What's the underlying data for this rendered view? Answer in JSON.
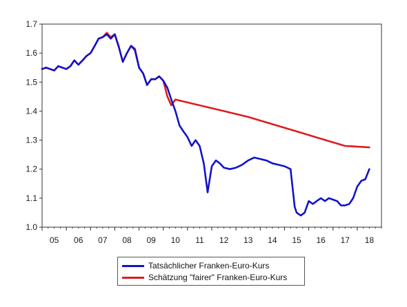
{
  "chart_data": {
    "type": "line",
    "title": "",
    "xlabel": "",
    "ylabel": "",
    "xlim": [
      2004.5,
      2018.5
    ],
    "ylim": [
      1.0,
      1.7
    ],
    "y_ticks": [
      1.0,
      1.1,
      1.2,
      1.3,
      1.4,
      1.5,
      1.6,
      1.7
    ],
    "y_tick_labels": [
      "1.0",
      "1.1",
      "1.2",
      "1.3",
      "1.4",
      "1.5",
      "1.6",
      "1.7"
    ],
    "x_tick_labels": [
      "05",
      "06",
      "07",
      "08",
      "09",
      "10",
      "11",
      "12",
      "13",
      "14",
      "15",
      "16",
      "17",
      "18"
    ],
    "x_tick_positions": [
      2005,
      2006,
      2007,
      2008,
      2009,
      2010,
      2011,
      2012,
      2013,
      2014,
      2015,
      2016,
      2017,
      2018
    ],
    "grid": true,
    "legend_position": "bottom-center",
    "series": [
      {
        "name": "Tatsächlicher Franken-Euro-Kurs",
        "color": "#1212c8",
        "x": [
          2004.5,
          2004.67,
          2004.83,
          2005.0,
          2005.17,
          2005.33,
          2005.5,
          2005.67,
          2005.83,
          2006.0,
          2006.17,
          2006.33,
          2006.5,
          2006.67,
          2006.83,
          2007.0,
          2007.17,
          2007.33,
          2007.5,
          2007.67,
          2007.83,
          2008.0,
          2008.17,
          2008.33,
          2008.5,
          2008.67,
          2008.83,
          2009.0,
          2009.17,
          2009.33,
          2009.5,
          2009.67,
          2009.83,
          2010.0,
          2010.17,
          2010.33,
          2010.5,
          2010.67,
          2010.83,
          2011.0,
          2011.17,
          2011.33,
          2011.5,
          2011.67,
          2011.83,
          2012.0,
          2012.25,
          2012.5,
          2012.75,
          2013.0,
          2013.25,
          2013.5,
          2013.75,
          2014.0,
          2014.25,
          2014.5,
          2014.75,
          2014.92,
          2015.0,
          2015.17,
          2015.33,
          2015.5,
          2015.67,
          2015.83,
          2016.0,
          2016.17,
          2016.33,
          2016.5,
          2016.67,
          2016.83,
          2017.0,
          2017.17,
          2017.33,
          2017.5,
          2017.67,
          2017.83,
          2018.0
        ],
        "y": [
          1.545,
          1.55,
          1.545,
          1.54,
          1.555,
          1.55,
          1.545,
          1.555,
          1.575,
          1.56,
          1.575,
          1.59,
          1.6,
          1.625,
          1.65,
          1.655,
          1.665,
          1.65,
          1.665,
          1.62,
          1.57,
          1.6,
          1.625,
          1.61,
          1.55,
          1.53,
          1.49,
          1.51,
          1.51,
          1.52,
          1.505,
          1.48,
          1.44,
          1.4,
          1.35,
          1.33,
          1.31,
          1.28,
          1.3,
          1.28,
          1.22,
          1.12,
          1.21,
          1.23,
          1.22,
          1.205,
          1.2,
          1.205,
          1.215,
          1.23,
          1.24,
          1.235,
          1.23,
          1.22,
          1.215,
          1.21,
          1.2,
          1.07,
          1.05,
          1.04,
          1.05,
          1.09,
          1.08,
          1.09,
          1.1,
          1.09,
          1.1,
          1.095,
          1.09,
          1.075,
          1.075,
          1.08,
          1.1,
          1.14,
          1.16,
          1.165,
          1.2
        ]
      },
      {
        "name": "Schätzung \"fairer\" Franken-Euro-Kurs",
        "color": "#dd1c1c",
        "x": [
          2004.5,
          2004.67,
          2004.83,
          2005.0,
          2005.17,
          2005.33,
          2005.5,
          2005.67,
          2005.83,
          2006.0,
          2006.17,
          2006.33,
          2006.5,
          2006.67,
          2006.83,
          2007.0,
          2007.17,
          2007.33,
          2007.5,
          2007.67,
          2007.83,
          2008.0,
          2008.17,
          2008.33,
          2008.5,
          2008.67,
          2008.83,
          2009.0,
          2009.17,
          2009.33,
          2009.5,
          2009.67,
          2009.83,
          2010.0,
          2011.0,
          2012.0,
          2013.0,
          2014.0,
          2015.0,
          2016.0,
          2017.0,
          2018.0
        ],
        "y": [
          1.545,
          1.55,
          1.545,
          1.54,
          1.555,
          1.55,
          1.545,
          1.555,
          1.575,
          1.56,
          1.575,
          1.59,
          1.6,
          1.625,
          1.65,
          1.655,
          1.67,
          1.655,
          1.665,
          1.62,
          1.57,
          1.6,
          1.625,
          1.615,
          1.55,
          1.53,
          1.49,
          1.51,
          1.51,
          1.52,
          1.505,
          1.45,
          1.42,
          1.44,
          1.42,
          1.4,
          1.38,
          1.355,
          1.33,
          1.305,
          1.28,
          1.275
        ]
      }
    ]
  }
}
